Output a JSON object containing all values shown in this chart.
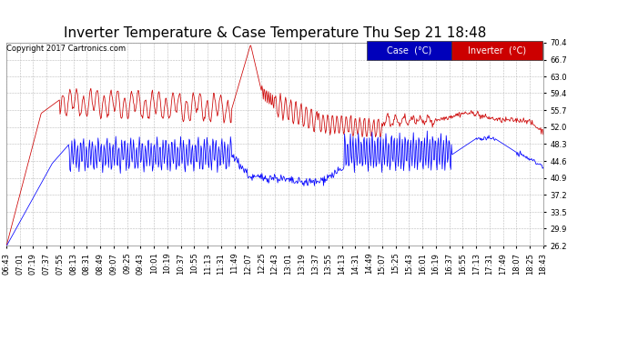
{
  "title": "Inverter Temperature & Case Temperature Thu Sep 21 18:48",
  "copyright": "Copyright 2017 Cartronics.com",
  "legend_labels": [
    "Case  (°C)",
    "Inverter  (°C)"
  ],
  "case_color": "#0000ff",
  "inverter_color": "#cc0000",
  "case_legend_bg": "#0000bb",
  "inverter_legend_bg": "#cc0000",
  "background_color": "#ffffff",
  "plot_bg_color": "#ffffff",
  "grid_color": "#bbbbbb",
  "ylim": [
    26.2,
    70.4
  ],
  "yticks": [
    26.2,
    29.9,
    33.5,
    37.2,
    40.9,
    44.6,
    48.3,
    52.0,
    55.7,
    59.4,
    63.0,
    66.7,
    70.4
  ],
  "xtick_labels": [
    "06:43",
    "07:01",
    "07:19",
    "07:37",
    "07:55",
    "08:13",
    "08:31",
    "08:49",
    "09:07",
    "09:25",
    "09:43",
    "10:01",
    "10:19",
    "10:37",
    "10:55",
    "11:13",
    "11:31",
    "11:49",
    "12:07",
    "12:25",
    "12:43",
    "13:01",
    "13:19",
    "13:37",
    "13:55",
    "14:13",
    "14:31",
    "14:49",
    "15:07",
    "15:25",
    "15:43",
    "16:01",
    "16:19",
    "16:37",
    "16:55",
    "17:13",
    "17:31",
    "17:49",
    "18:07",
    "18:25",
    "18:43"
  ],
  "title_fontsize": 11,
  "copyright_fontsize": 6,
  "tick_fontsize": 6,
  "legend_fontsize": 7
}
